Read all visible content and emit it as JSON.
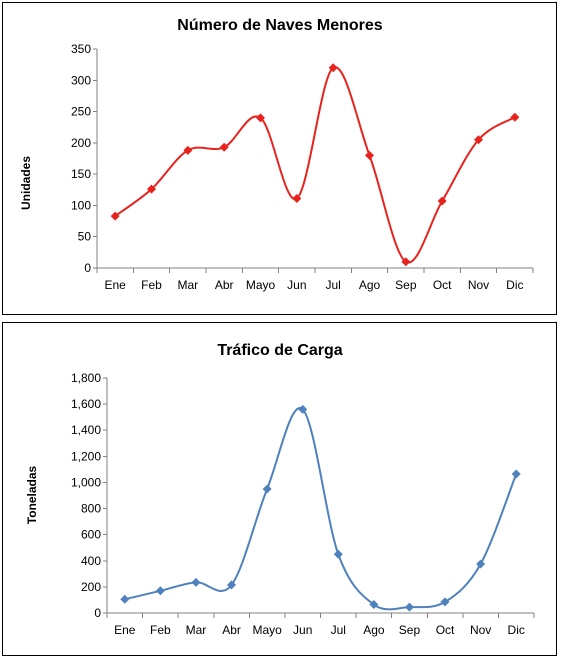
{
  "chart_data": [
    {
      "type": "line",
      "title": "Número de Naves Menores",
      "xlabel": "",
      "ylabel": "Unidades",
      "categories": [
        "Ene",
        "Feb",
        "Mar",
        "Abr",
        "Mayo",
        "Jun",
        "Jul",
        "Ago",
        "Sep",
        "Oct",
        "Nov",
        "Dic"
      ],
      "series": [
        {
          "values": [
            83,
            126,
            188,
            193,
            240,
            111,
            320,
            180,
            10,
            107,
            205,
            241
          ],
          "color": "#e8231e"
        }
      ],
      "ylim": [
        0,
        350
      ],
      "yticks": [
        0,
        50,
        100,
        150,
        200,
        250,
        300,
        350
      ],
      "ytick_labels": [
        "0",
        "50",
        "100",
        "150",
        "200",
        "250",
        "300",
        "350"
      ],
      "smooth": true,
      "marker": "diamond",
      "grid": false,
      "legend": "none"
    },
    {
      "type": "line",
      "title": "Tráfico de Carga",
      "xlabel": "",
      "ylabel": "Toneladas",
      "categories": [
        "Ene",
        "Feb",
        "Mar",
        "Abr",
        "Mayo",
        "Jun",
        "Jul",
        "Ago",
        "Sep",
        "Oct",
        "Nov",
        "Dic"
      ],
      "series": [
        {
          "values": [
            105,
            170,
            235,
            215,
            950,
            1560,
            450,
            65,
            45,
            85,
            375,
            1065
          ],
          "color": "#4f81bd"
        }
      ],
      "ylim": [
        0,
        1800
      ],
      "yticks": [
        0,
        200,
        400,
        600,
        800,
        1000,
        1200,
        1400,
        1600,
        1800
      ],
      "ytick_labels": [
        "0",
        "200",
        "400",
        "600",
        "800",
        "1,000",
        "1,200",
        "1,400",
        "1,600",
        "1,800"
      ],
      "smooth": true,
      "marker": "diamond",
      "grid": false,
      "legend": "none"
    }
  ]
}
